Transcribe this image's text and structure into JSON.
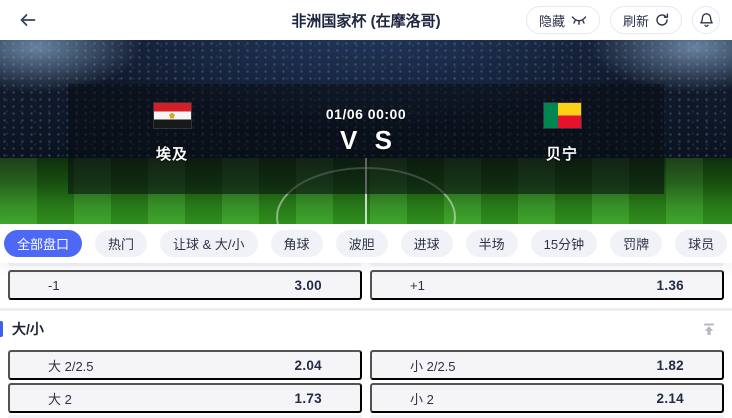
{
  "header": {
    "title": "非洲国家杯 (在摩洛哥)",
    "hide_label": "隐藏",
    "refresh_label": "刷新"
  },
  "match": {
    "time": "01/06 00:00",
    "vs_label": "V S",
    "home": {
      "name": "埃及",
      "flag": "egypt-flag"
    },
    "away": {
      "name": "贝宁",
      "flag": "benin-flag"
    }
  },
  "tabs": {
    "items": [
      {
        "key": "all-markets",
        "label": "全部盘口",
        "active": true
      },
      {
        "key": "hot",
        "label": "热门",
        "active": false
      },
      {
        "key": "handicap-over-under",
        "label": "让球 & 大/小",
        "active": false
      },
      {
        "key": "corners",
        "label": "角球",
        "active": false
      },
      {
        "key": "correct-score",
        "label": "波胆",
        "active": false
      },
      {
        "key": "goals",
        "label": "进球",
        "active": false
      },
      {
        "key": "half",
        "label": "半场",
        "active": false
      },
      {
        "key": "15-minutes",
        "label": "15分钟",
        "active": false
      },
      {
        "key": "cards",
        "label": "罚牌",
        "active": false
      },
      {
        "key": "players",
        "label": "球员",
        "active": false
      }
    ]
  },
  "markets": {
    "handicap": [
      {
        "label": "-1",
        "value": "3.00"
      },
      {
        "label": "+1",
        "value": "1.36"
      }
    ],
    "over_under_title": "大/小",
    "over_under": [
      [
        {
          "label": "大 2/2.5",
          "value": "2.04"
        },
        {
          "label": "小 2/2.5",
          "value": "1.82"
        }
      ],
      [
        {
          "label": "大 2",
          "value": "1.73"
        },
        {
          "label": "小 2",
          "value": "2.14"
        }
      ]
    ]
  },
  "icons": {
    "back": "arrow-left",
    "hide": "eye-closed",
    "refresh": "refresh-circle",
    "notifications": "bell",
    "tabs_collapse": "double-chevron-up",
    "section_pin": "pin-to-top"
  },
  "colors": {
    "accent_blue": "#4c68f5",
    "section_accent": "#3f5df0",
    "cell_bg": "#f5f5f8",
    "text_dark": "#2b3247",
    "egypt_red": "#d32027",
    "benin_green": "#008751",
    "benin_yellow": "#fcd116",
    "benin_red": "#e8112d"
  }
}
